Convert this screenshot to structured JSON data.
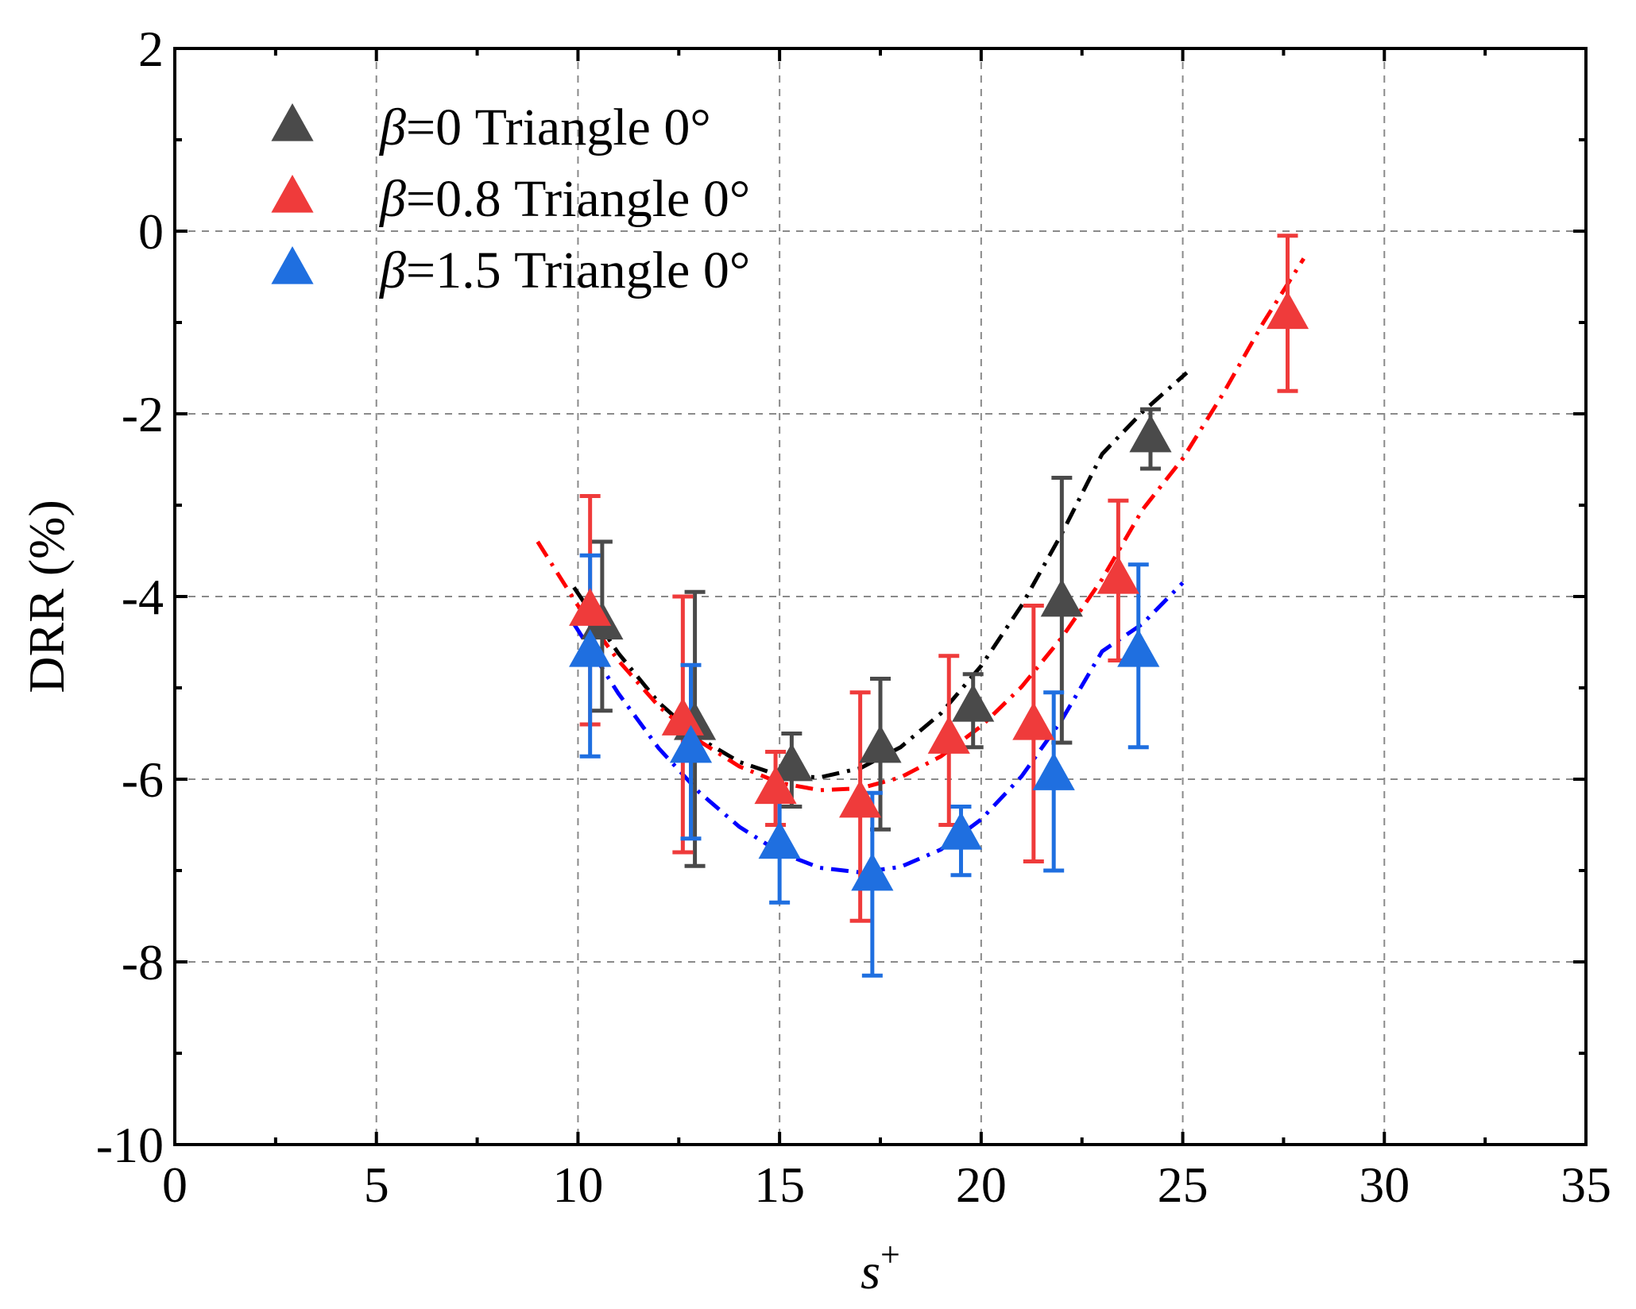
{
  "chart_data": {
    "type": "scatter",
    "title": "",
    "xlabel": "s+",
    "ylabel": "DRR (%)",
    "xlim": [
      0,
      35
    ],
    "ylim": [
      -10,
      2
    ],
    "x_ticks": [
      0,
      5,
      10,
      15,
      20,
      25,
      30,
      35
    ],
    "y_ticks": [
      -10,
      -8,
      -6,
      -4,
      -2,
      0,
      2
    ],
    "grid": true,
    "legend_position": "top-left",
    "series": [
      {
        "name": "β=0 Triangle 0°",
        "legend_symbol": "β",
        "legend_text": "=0 Triangle 0°",
        "color": "#4a4a4a",
        "errorbar_color": "#4a4a4a",
        "fit_color": "#000000",
        "marker": "triangle-up",
        "points": [
          {
            "x": 10.6,
            "y": -4.3,
            "ylo": -5.25,
            "yhi": -3.4
          },
          {
            "x": 12.9,
            "y": -5.4,
            "ylo": -6.95,
            "yhi": -3.95
          },
          {
            "x": 15.3,
            "y": -5.85,
            "ylo": -6.3,
            "yhi": -5.5
          },
          {
            "x": 17.5,
            "y": -5.65,
            "ylo": -6.55,
            "yhi": -4.9
          },
          {
            "x": 19.8,
            "y": -5.2,
            "ylo": -5.65,
            "yhi": -4.85
          },
          {
            "x": 22.0,
            "y": -4.05,
            "ylo": -5.6,
            "yhi": -2.7
          },
          {
            "x": 24.2,
            "y": -2.25,
            "ylo": -2.6,
            "yhi": -1.95
          }
        ],
        "fit": {
          "x": [
            9.9,
            11,
            12,
            13,
            14,
            15,
            16,
            17,
            18,
            19,
            20,
            21,
            22,
            23,
            24,
            25.1
          ],
          "y": [
            -3.9,
            -4.62,
            -5.16,
            -5.55,
            -5.81,
            -5.96,
            -5.98,
            -5.88,
            -5.65,
            -5.28,
            -4.76,
            -4.1,
            -3.31,
            -2.44,
            -1.98,
            -1.55
          ]
        }
      },
      {
        "name": "β=0.8 Triangle 0°",
        "legend_symbol": "β",
        "legend_text": "=0.8 Triangle 0°",
        "color": "#ef3b3b",
        "errorbar_color": "#ef3b3b",
        "fit_color": "#ff0000",
        "marker": "triangle-up",
        "points": [
          {
            "x": 10.3,
            "y": -4.15,
            "ylo": -5.4,
            "yhi": -2.9
          },
          {
            "x": 12.6,
            "y": -5.35,
            "ylo": -6.8,
            "yhi": -4.0
          },
          {
            "x": 14.9,
            "y": -6.1,
            "ylo": -6.5,
            "yhi": -5.7
          },
          {
            "x": 17.0,
            "y": -6.25,
            "ylo": -7.55,
            "yhi": -5.05
          },
          {
            "x": 19.2,
            "y": -5.55,
            "ylo": -6.5,
            "yhi": -4.65
          },
          {
            "x": 21.3,
            "y": -5.4,
            "ylo": -6.9,
            "yhi": -4.1
          },
          {
            "x": 23.4,
            "y": -3.8,
            "ylo": -4.7,
            "yhi": -2.95
          },
          {
            "x": 27.6,
            "y": -0.9,
            "ylo": -1.75,
            "yhi": -0.05
          }
        ],
        "fit": {
          "x": [
            9.0,
            10,
            11,
            12,
            13,
            14,
            15,
            16,
            17,
            18,
            19,
            20,
            21,
            22,
            23,
            24,
            25,
            26,
            27,
            28.0
          ],
          "y": [
            -3.4,
            -4.1,
            -4.7,
            -5.2,
            -5.58,
            -5.86,
            -6.04,
            -6.12,
            -6.1,
            -5.98,
            -5.75,
            -5.42,
            -4.99,
            -4.45,
            -3.81,
            -3.05,
            -2.49,
            -1.78,
            -1.0,
            -0.3
          ]
        }
      },
      {
        "name": "β=1.5 Triangle 0°",
        "legend_symbol": "β",
        "legend_text": "=1.5 Triangle 0°",
        "color": "#1f6fe0",
        "errorbar_color": "#1f6fe0",
        "fit_color": "#0000ff",
        "marker": "triangle-up",
        "points": [
          {
            "x": 10.3,
            "y": -4.6,
            "ylo": -5.75,
            "yhi": -3.55
          },
          {
            "x": 12.8,
            "y": -5.65,
            "ylo": -6.65,
            "yhi": -4.75
          },
          {
            "x": 15.0,
            "y": -6.7,
            "ylo": -7.35,
            "yhi": -6.2
          },
          {
            "x": 17.3,
            "y": -7.05,
            "ylo": -8.15,
            "yhi": -6.15
          },
          {
            "x": 19.5,
            "y": -6.6,
            "ylo": -7.05,
            "yhi": -6.3
          },
          {
            "x": 21.8,
            "y": -5.95,
            "ylo": -7.0,
            "yhi": -5.05
          },
          {
            "x": 23.9,
            "y": -4.6,
            "ylo": -5.65,
            "yhi": -3.65
          }
        ],
        "fit": {
          "x": [
            9.9,
            11,
            12,
            13,
            14,
            15,
            16,
            17,
            18,
            19,
            20,
            21,
            22,
            23,
            24,
            25.0
          ],
          "y": [
            -4.3,
            -5.06,
            -5.66,
            -6.14,
            -6.52,
            -6.8,
            -6.97,
            -7.02,
            -6.96,
            -6.77,
            -6.44,
            -5.97,
            -5.35,
            -4.6,
            -4.3,
            -3.85
          ]
        }
      }
    ]
  }
}
